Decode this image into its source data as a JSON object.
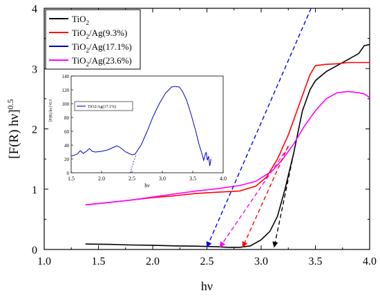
{
  "chart_data": [
    {
      "type": "line",
      "xlabel": "hν",
      "ylabel_main": "[F(R) hν]",
      "ylabel_sup": "0.5",
      "xlim": [
        1.0,
        4.0
      ],
      "ylim": [
        0,
        4
      ],
      "x_ticks": [
        1.0,
        1.5,
        2.0,
        2.5,
        3.0,
        3.5,
        4.0
      ],
      "x_tick_labels": [
        "1.0",
        "1.5",
        "2.0",
        "2.5",
        "3.0",
        "3.5",
        "4.0"
      ],
      "y_ticks": [
        0,
        1,
        2,
        3,
        4
      ],
      "y_tick_labels": [
        "0",
        "1",
        "2",
        "3",
        "4"
      ],
      "grid": false,
      "legend_position": "top-left",
      "legend": [
        {
          "base": "TiO",
          "sub": "2",
          "rest": "",
          "color": "#000000"
        },
        {
          "base": "TiO",
          "sub": "2",
          "rest": "/Ag(9.3%)",
          "color": "#ff0000"
        },
        {
          "base": "TiO",
          "sub": "2",
          "rest": "/Ag(17.1%)",
          "color": "#0000cc"
        },
        {
          "base": "TiO",
          "sub": "2",
          "rest": "/Ag(23.6%)",
          "color": "#ff00ff"
        }
      ],
      "series": [
        {
          "color": "#000000",
          "points": [
            [
              1.38,
              0.09
            ],
            [
              1.6,
              0.085
            ],
            [
              1.8,
              0.075
            ],
            [
              2.0,
              0.07
            ],
            [
              2.2,
              0.06
            ],
            [
              2.4,
              0.055
            ],
            [
              2.6,
              0.045
            ],
            [
              2.7,
              0.035
            ],
            [
              2.8,
              0.035
            ],
            [
              2.9,
              0.06
            ],
            [
              3.0,
              0.16
            ],
            [
              3.08,
              0.3
            ],
            [
              3.15,
              0.55
            ],
            [
              3.22,
              1.0
            ],
            [
              3.3,
              1.6
            ],
            [
              3.38,
              2.3
            ],
            [
              3.45,
              2.65
            ],
            [
              3.5,
              2.8
            ],
            [
              3.6,
              2.95
            ],
            [
              3.7,
              3.05
            ],
            [
              3.8,
              3.15
            ],
            [
              3.9,
              3.25
            ],
            [
              3.95,
              3.38
            ],
            [
              4.0,
              3.4
            ]
          ]
        },
        {
          "color": "#ff0000",
          "points": [
            [
              1.38,
              0.74
            ],
            [
              1.6,
              0.78
            ],
            [
              1.8,
              0.82
            ],
            [
              2.0,
              0.86
            ],
            [
              2.2,
              0.89
            ],
            [
              2.4,
              0.93
            ],
            [
              2.6,
              0.95
            ],
            [
              2.8,
              0.97
            ],
            [
              2.95,
              1.05
            ],
            [
              3.05,
              1.2
            ],
            [
              3.15,
              1.5
            ],
            [
              3.25,
              1.9
            ],
            [
              3.35,
              2.4
            ],
            [
              3.45,
              2.9
            ],
            [
              3.5,
              3.05
            ],
            [
              3.6,
              3.07
            ],
            [
              3.7,
              3.08
            ],
            [
              3.8,
              3.1
            ],
            [
              3.9,
              3.1
            ],
            [
              4.0,
              3.1
            ]
          ]
        },
        {
          "color": "#ff00ff",
          "points": [
            [
              1.38,
              0.74
            ],
            [
              1.6,
              0.78
            ],
            [
              1.8,
              0.82
            ],
            [
              2.0,
              0.87
            ],
            [
              2.2,
              0.92
            ],
            [
              2.4,
              0.97
            ],
            [
              2.6,
              1.01
            ],
            [
              2.8,
              1.06
            ],
            [
              2.95,
              1.13
            ],
            [
              3.1,
              1.3
            ],
            [
              3.2,
              1.5
            ],
            [
              3.3,
              1.75
            ],
            [
              3.4,
              2.05
            ],
            [
              3.5,
              2.3
            ],
            [
              3.6,
              2.5
            ],
            [
              3.7,
              2.6
            ],
            [
              3.8,
              2.62
            ],
            [
              3.9,
              2.6
            ],
            [
              3.95,
              2.58
            ],
            [
              4.0,
              2.52
            ]
          ]
        }
      ],
      "tangent_lines": [
        {
          "color": "#0000ee",
          "from": [
            2.5,
            0.04
          ],
          "to": [
            3.46,
            4.0
          ]
        },
        {
          "color": "#ff00ff",
          "from": [
            2.62,
            0.04
          ],
          "to": [
            3.25,
            1.7
          ]
        },
        {
          "color": "#ff0000",
          "from": [
            2.83,
            0.04
          ],
          "to": [
            3.25,
            1.72
          ]
        },
        {
          "color": "#000000",
          "from": [
            3.12,
            0.04
          ],
          "to": [
            3.3,
            1.6
          ]
        }
      ]
    },
    {
      "type": "line",
      "xlabel": "hν",
      "ylabel": "[F(R) hν]^0.5",
      "xlim": [
        1.5,
        4.0
      ],
      "ylim": [
        0,
        140
      ],
      "x_ticks": [
        1.5,
        2.0,
        2.5,
        3.0,
        3.5,
        4.0
      ],
      "x_tick_labels": [
        "1.5",
        "2.0",
        "2.5",
        "3.0",
        "3.5",
        "4.0"
      ],
      "y_ticks": [
        0,
        20,
        40,
        60,
        80,
        100,
        120,
        140
      ],
      "y_tick_labels": [
        "0",
        "20",
        "40",
        "60",
        "80",
        "100",
        "120",
        "140"
      ],
      "grid": false,
      "legend_position": "top-left",
      "legend": [
        {
          "label": "TiO2/Ag(17.1%)",
          "color": "#0000cc"
        }
      ],
      "series": [
        {
          "color": "#0000cc",
          "points": [
            [
              1.5,
              24
            ],
            [
              1.6,
              27
            ],
            [
              1.65,
              32
            ],
            [
              1.7,
              28
            ],
            [
              1.75,
              31
            ],
            [
              1.8,
              35
            ],
            [
              1.85,
              31
            ],
            [
              1.9,
              30
            ],
            [
              2.0,
              31
            ],
            [
              2.1,
              33
            ],
            [
              2.2,
              37
            ],
            [
              2.25,
              39
            ],
            [
              2.3,
              37
            ],
            [
              2.4,
              30
            ],
            [
              2.5,
              26
            ],
            [
              2.55,
              27
            ],
            [
              2.65,
              40
            ],
            [
              2.75,
              60
            ],
            [
              2.85,
              82
            ],
            [
              2.95,
              100
            ],
            [
              3.05,
              115
            ],
            [
              3.15,
              124
            ],
            [
              3.2,
              125
            ],
            [
              3.28,
              124
            ],
            [
              3.33,
              118
            ],
            [
              3.4,
              105
            ],
            [
              3.47,
              85
            ],
            [
              3.55,
              60
            ],
            [
              3.6,
              42
            ],
            [
              3.65,
              28
            ],
            [
              3.68,
              18
            ],
            [
              3.7,
              25
            ],
            [
              3.72,
              30
            ],
            [
              3.74,
              18
            ],
            [
              3.76,
              24
            ],
            [
              3.78,
              10
            ],
            [
              3.8,
              20
            ]
          ]
        }
      ],
      "tangent_lines": [
        {
          "color": "#0000cc",
          "from": [
            2.47,
            0
          ],
          "to": [
            2.57,
            27
          ]
        }
      ]
    }
  ]
}
